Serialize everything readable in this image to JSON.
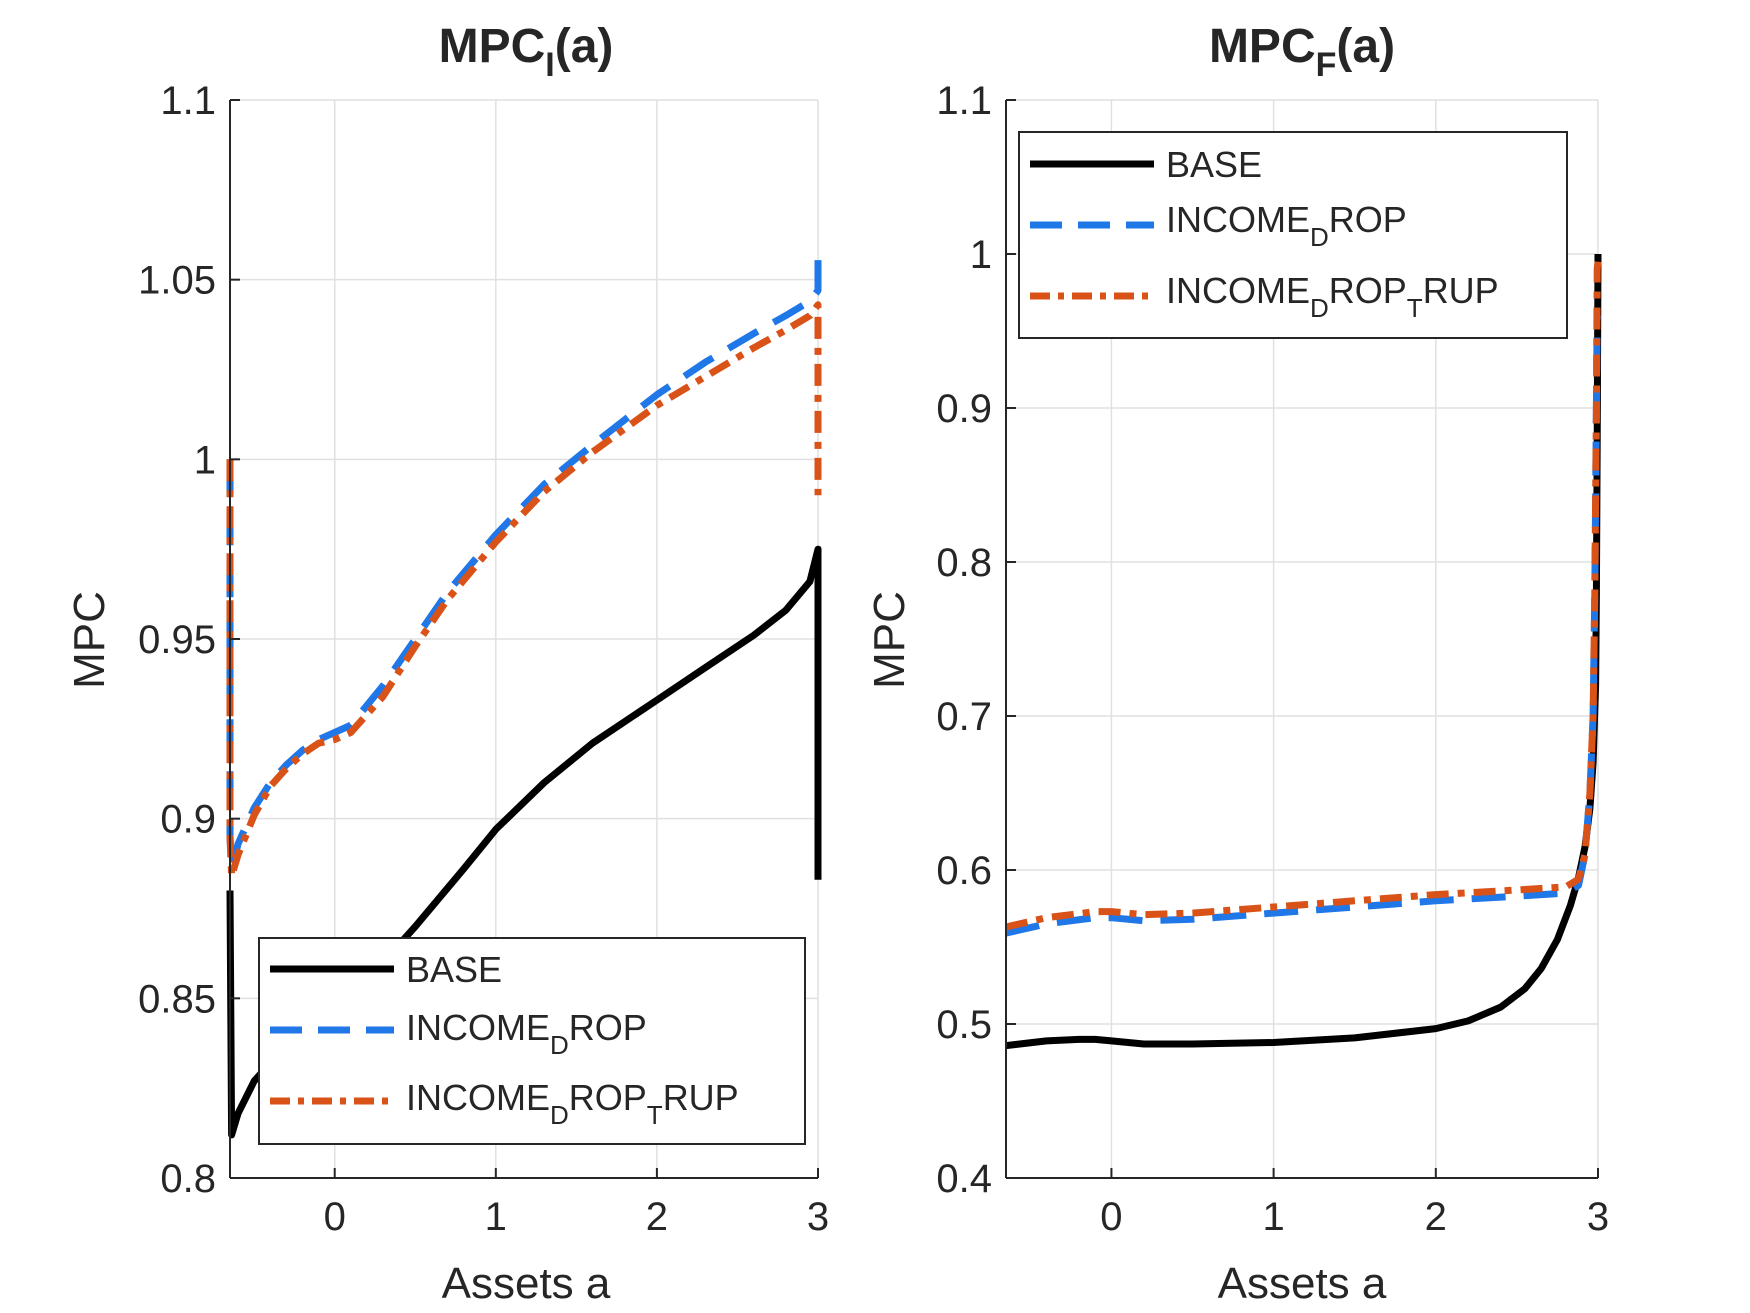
{
  "figure": {
    "subplot_count": 2
  },
  "colors": {
    "base": "#000000",
    "income_drop": "#1f77e8",
    "income_drop_trup": "#d95319",
    "grid": "#e0e0e0",
    "axis": "#262626"
  },
  "chart_data": [
    {
      "type": "line",
      "title_main": "MPC",
      "title_sub": "I",
      "title_tail": "(a)",
      "xlabel": "Assets a",
      "ylabel": "MPC",
      "xlim": [
        -0.65,
        3.0
      ],
      "ylim": [
        0.8,
        1.1
      ],
      "xticks": [
        0,
        1,
        2,
        3
      ],
      "xtick_labels": [
        "0",
        "1",
        "2",
        "3"
      ],
      "yticks": [
        0.8,
        0.85,
        0.9,
        0.95,
        1.0,
        1.05,
        1.1
      ],
      "ytick_labels": [
        "0.8",
        "0.85",
        "0.9",
        "0.95",
        "1",
        "1.05",
        "1.1"
      ],
      "grid": true,
      "legend_position": "bottom-right",
      "legend": [
        {
          "text": "BASE",
          "sub": "",
          "mid": "",
          "sub2": "",
          "tail": ""
        },
        {
          "text": "INCOME",
          "sub": "D",
          "mid": "ROP",
          "sub2": "",
          "tail": ""
        },
        {
          "text": "INCOME",
          "sub": "D",
          "mid": "ROP",
          "sub2": "T",
          "tail": "RUP"
        }
      ],
      "series": [
        {
          "name": "BASE",
          "style": "solid",
          "color": "#000000",
          "x": [
            -0.65,
            -0.64,
            -0.6,
            -0.5,
            -0.4,
            -0.3,
            -0.2,
            -0.1,
            0.0,
            0.2,
            0.5,
            0.8,
            1.0,
            1.3,
            1.6,
            2.0,
            2.3,
            2.6,
            2.8,
            2.95,
            3.0,
            3.0
          ],
          "y": [
            0.88,
            0.812,
            0.818,
            0.827,
            0.832,
            0.836,
            0.838,
            0.84,
            0.842,
            0.855,
            0.87,
            0.886,
            0.897,
            0.91,
            0.921,
            0.933,
            0.942,
            0.951,
            0.958,
            0.966,
            0.975,
            0.883
          ]
        },
        {
          "name": "INCOME_DROP",
          "style": "dashed",
          "color": "#1f77e8",
          "x": [
            -0.65,
            -0.65,
            -0.64,
            -0.6,
            -0.5,
            -0.4,
            -0.3,
            -0.2,
            -0.1,
            0.0,
            0.1,
            0.3,
            0.5,
            0.7,
            1.0,
            1.3,
            1.6,
            2.0,
            2.3,
            2.6,
            2.8,
            2.95,
            3.0,
            3.0
          ],
          "y": [
            1.0,
            0.895,
            0.886,
            0.893,
            0.903,
            0.91,
            0.915,
            0.919,
            0.922,
            0.924,
            0.926,
            0.937,
            0.95,
            0.963,
            0.979,
            0.993,
            1.004,
            1.018,
            1.027,
            1.035,
            1.04,
            1.044,
            1.047,
            1.057
          ]
        },
        {
          "name": "INCOME_DROP_TRUP",
          "style": "dashdot",
          "color": "#d95319",
          "x": [
            -0.65,
            -0.65,
            -0.64,
            -0.6,
            -0.5,
            -0.4,
            -0.3,
            -0.2,
            -0.1,
            0.0,
            0.1,
            0.3,
            0.5,
            0.7,
            1.0,
            1.3,
            1.6,
            2.0,
            2.3,
            2.6,
            2.8,
            2.95,
            3.0,
            3.0
          ],
          "y": [
            1.0,
            0.895,
            0.884,
            0.89,
            0.901,
            0.909,
            0.914,
            0.918,
            0.921,
            0.922,
            0.924,
            0.934,
            0.948,
            0.961,
            0.977,
            0.991,
            1.002,
            1.015,
            1.023,
            1.031,
            1.036,
            1.04,
            1.043,
            0.99
          ]
        }
      ]
    },
    {
      "type": "line",
      "title_main": "MPC",
      "title_sub": "F",
      "title_tail": "(a)",
      "xlabel": "Assets a",
      "ylabel": "MPC",
      "xlim": [
        -0.65,
        3.0
      ],
      "ylim": [
        0.4,
        1.1
      ],
      "xticks": [
        0,
        1,
        2,
        3
      ],
      "xtick_labels": [
        "0",
        "1",
        "2",
        "3"
      ],
      "yticks": [
        0.4,
        0.5,
        0.6,
        0.7,
        0.8,
        0.9,
        1.0,
        1.1
      ],
      "ytick_labels": [
        "0.4",
        "0.5",
        "0.6",
        "0.7",
        "0.8",
        "0.9",
        "1",
        "1.1"
      ],
      "grid": true,
      "legend_position": "top-left",
      "legend": [
        {
          "text": "BASE",
          "sub": "",
          "mid": "",
          "sub2": "",
          "tail": ""
        },
        {
          "text": "INCOME",
          "sub": "D",
          "mid": "ROP",
          "sub2": "",
          "tail": ""
        },
        {
          "text": "INCOME",
          "sub": "D",
          "mid": "ROP",
          "sub2": "T",
          "tail": "RUP"
        }
      ],
      "series": [
        {
          "name": "BASE",
          "style": "solid",
          "color": "#000000",
          "x": [
            -0.65,
            -0.4,
            -0.2,
            -0.1,
            0.0,
            0.2,
            0.5,
            1.0,
            1.5,
            2.0,
            2.2,
            2.4,
            2.55,
            2.65,
            2.75,
            2.83,
            2.88,
            2.92,
            2.95,
            2.97,
            2.985,
            2.99,
            2.995,
            3.0
          ],
          "y": [
            0.486,
            0.489,
            0.49,
            0.49,
            0.489,
            0.487,
            0.487,
            0.488,
            0.491,
            0.497,
            0.502,
            0.511,
            0.523,
            0.536,
            0.555,
            0.577,
            0.595,
            0.615,
            0.64,
            0.67,
            0.72,
            0.78,
            0.88,
            1.0
          ]
        },
        {
          "name": "INCOME_DROP",
          "style": "dashed",
          "color": "#1f77e8",
          "x": [
            -0.65,
            -0.4,
            -0.1,
            0.0,
            0.2,
            0.5,
            1.0,
            1.5,
            2.0,
            2.5,
            2.8,
            2.88,
            2.92,
            2.95,
            2.97,
            2.98,
            2.99,
            2.995,
            3.0
          ],
          "y": [
            0.559,
            0.565,
            0.569,
            0.569,
            0.567,
            0.568,
            0.572,
            0.576,
            0.58,
            0.583,
            0.585,
            0.59,
            0.61,
            0.65,
            0.7,
            0.78,
            0.9,
            0.96,
            0.96
          ]
        },
        {
          "name": "INCOME_DROP_TRUP",
          "style": "dashdot",
          "color": "#d95319",
          "x": [
            -0.65,
            -0.4,
            -0.1,
            0.0,
            0.2,
            0.5,
            1.0,
            1.5,
            2.0,
            2.5,
            2.8,
            2.88,
            2.92,
            2.95,
            2.97,
            2.98,
            2.99,
            2.995,
            3.0
          ],
          "y": [
            0.563,
            0.569,
            0.573,
            0.573,
            0.571,
            0.572,
            0.576,
            0.58,
            0.584,
            0.587,
            0.589,
            0.594,
            0.61,
            0.65,
            0.7,
            0.78,
            0.9,
            0.99,
            0.995
          ]
        }
      ]
    }
  ]
}
